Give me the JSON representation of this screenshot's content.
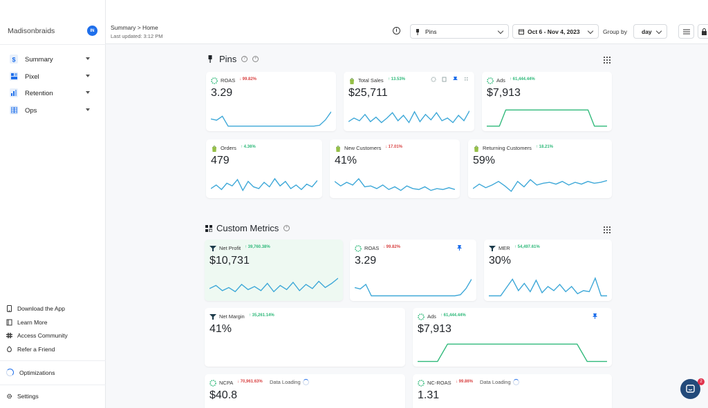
{
  "sidebar": {
    "brand": "Madisonbraids",
    "avatar_initials": "IN",
    "nav": [
      {
        "label": "Summary",
        "icon": "dollar-icon"
      },
      {
        "label": "Pixel",
        "icon": "pixel-icon"
      },
      {
        "label": "Retention",
        "icon": "retention-chart-icon"
      },
      {
        "label": "Ops",
        "icon": "grid-table-icon"
      }
    ],
    "footer": [
      {
        "label": "Download the App",
        "icon": "phone-icon"
      },
      {
        "label": "Learn More",
        "icon": "book-icon"
      },
      {
        "label": "Access Community",
        "icon": "slack-icon"
      },
      {
        "label": "Refer a Friend",
        "icon": "gift-icon"
      }
    ],
    "optimizations": "Optimizations",
    "settings": "Settings"
  },
  "header": {
    "breadcrumb": "Summary > Home",
    "last_updated": "Last updated: 3:12 PM",
    "pins_select": "Pins",
    "date_range": "Oct 6 - Nov 4, 2023",
    "group_by_label": "Group by",
    "group_by_value": "day"
  },
  "pins_section": {
    "title": "Pins",
    "cards": [
      {
        "title": "ROAS",
        "delta": "99.82%",
        "direction": "down",
        "value": "3.29",
        "icon": "tw-pixel-icon",
        "spark": [
          0.55,
          0.62,
          0.4,
          0.95,
          0.95,
          0.95,
          0.95,
          0.95,
          0.95,
          0.95,
          0.95,
          0.95,
          0.95,
          0.95,
          0.95,
          0.95,
          0.95,
          0.95,
          0.95,
          0.9,
          0.6,
          0.15
        ],
        "color": "#3ea8d8"
      },
      {
        "title": "Total Sales",
        "delta": "13.53%",
        "direction": "up",
        "value": "$25,711",
        "icon": "shopify-icon",
        "spark": [
          0.7,
          0.5,
          0.65,
          0.3,
          0.7,
          0.45,
          0.75,
          0.5,
          0.2,
          0.65,
          0.35,
          0.75,
          0.15,
          0.7,
          0.3,
          0.6,
          0.2,
          0.65,
          0.5,
          0.75,
          0.35,
          0.65,
          0.1
        ],
        "color": "#3ea8d8"
      },
      {
        "title": "Ads",
        "delta": "61,444.44%",
        "direction": "up",
        "value": "$7,913",
        "icon": "tw-pixel-icon",
        "spark": [
          0.95,
          0.95,
          0.95,
          0.05,
          0.05,
          0.05,
          0.05,
          0.05,
          0.05,
          0.05,
          0.05,
          0.05,
          0.05,
          0.05,
          0.05,
          0.05,
          0.05,
          0.95,
          0.95,
          0.95
        ],
        "color": "#2fb97a"
      },
      {
        "title": "Orders",
        "delta": "4.36%",
        "direction": "up",
        "value": "479",
        "icon": "shopify-icon",
        "spark": [
          0.7,
          0.5,
          0.75,
          0.4,
          0.55,
          0.2,
          0.8,
          0.3,
          0.6,
          0.7,
          0.35,
          0.6,
          0.15,
          0.55,
          0.3,
          0.7,
          0.5,
          0.75,
          0.45,
          0.6,
          0.25
        ],
        "color": "#3ea8d8"
      },
      {
        "title": "New Customers",
        "delta": "17.01%",
        "direction": "down",
        "value": "41%",
        "icon": "shopify-icon",
        "spark": [
          0.3,
          0.55,
          0.35,
          0.5,
          0.15,
          0.6,
          0.55,
          0.7,
          0.5,
          0.75,
          0.6,
          0.8,
          0.55,
          0.7,
          0.75,
          0.6,
          0.8,
          0.7,
          0.75,
          0.65,
          0.75
        ],
        "color": "#3ea8d8"
      },
      {
        "title": "Returning Customers",
        "delta": "18.21%",
        "direction": "up",
        "value": "59%",
        "icon": "shopify-icon",
        "spark": [
          0.7,
          0.45,
          0.65,
          0.5,
          0.3,
          0.55,
          0.85,
          0.3,
          0.6,
          0.2,
          0.5,
          0.4,
          0.35,
          0.45,
          0.3,
          0.5,
          0.35,
          0.45,
          0.3,
          0.4,
          0.35,
          0.25
        ],
        "color": "#3ea8d8"
      }
    ]
  },
  "custom_section": {
    "title": "Custom Metrics",
    "cards": [
      {
        "title": "Net Profit",
        "delta": "39,760.38%",
        "direction": "up",
        "value": "$10,731",
        "icon": "tw-funnel-icon",
        "spark": [
          0.6,
          0.45,
          0.7,
          0.55,
          0.75,
          0.4,
          0.65,
          0.5,
          0.7,
          0.35,
          0.75,
          0.45,
          0.65,
          0.3,
          0.7,
          0.4,
          0.6,
          0.25,
          0.55,
          0.35,
          0.1
        ],
        "color": "#3ea8d8"
      },
      {
        "title": "ROAS",
        "delta": "99.82%",
        "direction": "down",
        "value": "3.29",
        "icon": "tw-pixel-icon",
        "spark": [
          0.55,
          0.62,
          0.4,
          0.95,
          0.95,
          0.95,
          0.95,
          0.95,
          0.95,
          0.95,
          0.95,
          0.95,
          0.95,
          0.95,
          0.95,
          0.95,
          0.95,
          0.95,
          0.95,
          0.9,
          0.6,
          0.15
        ],
        "color": "#3ea8d8"
      },
      {
        "title": "MER",
        "delta": "54,497.61%",
        "direction": "up",
        "value": "30%",
        "icon": "tw-funnel-icon",
        "spark": [
          0.95,
          0.95,
          0.95,
          0.55,
          0.15,
          0.7,
          0.35,
          0.75,
          0.2,
          0.8,
          0.5,
          0.7,
          0.4,
          0.75,
          0.5,
          0.85,
          0.7,
          0.75,
          0.1,
          0.95,
          0.95
        ],
        "color": "#3ea8d8"
      },
      {
        "title": "Net Margin",
        "delta": "35,261.14%",
        "direction": "up",
        "value": "41%",
        "icon": "tw-funnel-icon",
        "spark": [],
        "color": "#3ea8d8"
      },
      {
        "title": "Ads",
        "delta": "61,444.44%",
        "direction": "up",
        "value": "$7,913",
        "icon": "tw-pixel-icon",
        "spark": [
          0.95,
          0.95,
          0.95,
          0.05,
          0.05,
          0.05,
          0.05,
          0.05,
          0.05,
          0.05,
          0.05,
          0.05,
          0.05,
          0.05,
          0.05,
          0.05,
          0.05,
          0.95,
          0.95,
          0.95
        ],
        "color": "#2fb97a"
      },
      {
        "title": "NCPA",
        "delta": "70,961.63%",
        "direction": "down",
        "value": "$40.8",
        "icon": "tw-pixel-icon",
        "loading": "Data Loading",
        "spark": [],
        "color": "#3ea8d8"
      },
      {
        "title": "NC-ROAS",
        "delta": "99.86%",
        "direction": "down",
        "value": "1.31",
        "icon": "tw-pixel-icon",
        "loading": "Data Loading",
        "spark": [],
        "color": "#3ea8d8"
      }
    ]
  },
  "chat_badge": "2",
  "colors": {
    "accent": "#1f6feb",
    "up": "#2fb97a",
    "down": "#d94444",
    "spark": "#3ea8d8"
  }
}
